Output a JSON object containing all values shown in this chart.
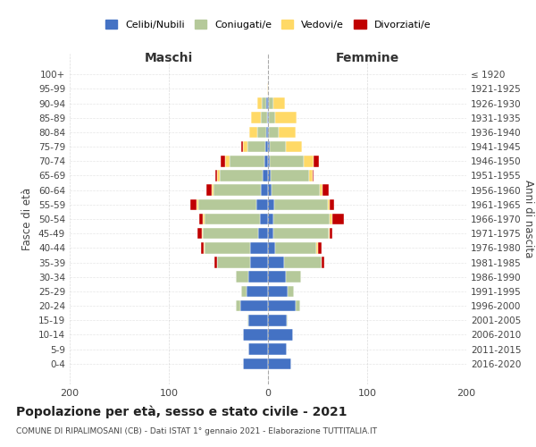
{
  "age_groups": [
    "100+",
    "95-99",
    "90-94",
    "85-89",
    "80-84",
    "75-79",
    "70-74",
    "65-69",
    "60-64",
    "55-59",
    "50-54",
    "45-49",
    "40-44",
    "35-39",
    "30-34",
    "25-29",
    "20-24",
    "15-19",
    "10-14",
    "5-9",
    "0-4"
  ],
  "birth_years": [
    "≤ 1920",
    "1921-1925",
    "1926-1930",
    "1931-1935",
    "1936-1940",
    "1941-1945",
    "1946-1950",
    "1951-1955",
    "1956-1960",
    "1961-1965",
    "1966-1970",
    "1971-1975",
    "1976-1980",
    "1981-1985",
    "1986-1990",
    "1991-1995",
    "1996-2000",
    "2001-2005",
    "2006-2010",
    "2011-2015",
    "2016-2020"
  ],
  "colors": {
    "celibi": "#4472c4",
    "coniugati": "#b5c99a",
    "vedovi": "#ffd966",
    "divorziati": "#c00000"
  },
  "maschi": {
    "celibi": [
      0,
      0,
      2,
      1,
      2,
      3,
      4,
      5,
      7,
      12,
      8,
      10,
      18,
      18,
      20,
      22,
      28,
      20,
      25,
      20,
      25
    ],
    "coniugati": [
      0,
      0,
      4,
      6,
      9,
      18,
      35,
      44,
      48,
      58,
      56,
      56,
      46,
      33,
      12,
      5,
      4,
      1,
      0,
      0,
      0
    ],
    "vedovi": [
      0,
      1,
      5,
      10,
      8,
      4,
      4,
      2,
      2,
      2,
      2,
      1,
      1,
      0,
      0,
      0,
      0,
      0,
      0,
      0,
      0
    ],
    "divorziati": [
      0,
      0,
      0,
      0,
      0,
      2,
      5,
      2,
      5,
      6,
      3,
      4,
      3,
      3,
      0,
      0,
      0,
      0,
      0,
      0,
      0
    ]
  },
  "femmine": {
    "nubili": [
      0,
      0,
      1,
      1,
      1,
      2,
      2,
      3,
      4,
      6,
      5,
      5,
      7,
      16,
      18,
      20,
      28,
      19,
      25,
      19,
      23
    ],
    "coniugati": [
      0,
      0,
      4,
      6,
      10,
      16,
      34,
      38,
      48,
      54,
      57,
      56,
      42,
      38,
      15,
      6,
      4,
      1,
      0,
      0,
      0
    ],
    "vedovi": [
      0,
      0,
      12,
      22,
      17,
      16,
      10,
      4,
      3,
      2,
      3,
      1,
      1,
      0,
      0,
      0,
      0,
      0,
      0,
      0,
      0
    ],
    "divorziati": [
      0,
      0,
      0,
      0,
      0,
      0,
      5,
      1,
      6,
      5,
      12,
      3,
      4,
      3,
      0,
      0,
      0,
      0,
      0,
      0,
      0
    ]
  },
  "xlim": 200,
  "title": "Popolazione per età, sesso e stato civile - 2021",
  "subtitle": "COMUNE DI RIPALIMOSANI (CB) - Dati ISTAT 1° gennaio 2021 - Elaborazione TUTTITALIA.IT",
  "ylabel_left": "Fasce di età",
  "ylabel_right": "Anni di nascita",
  "xlabel_left": "Maschi",
  "xlabel_right": "Femmine",
  "legend_labels": [
    "Celibi/Nubili",
    "Coniugati/e",
    "Vedovi/e",
    "Divorziati/e"
  ],
  "background_color": "#ffffff",
  "grid_color": "#cccccc"
}
